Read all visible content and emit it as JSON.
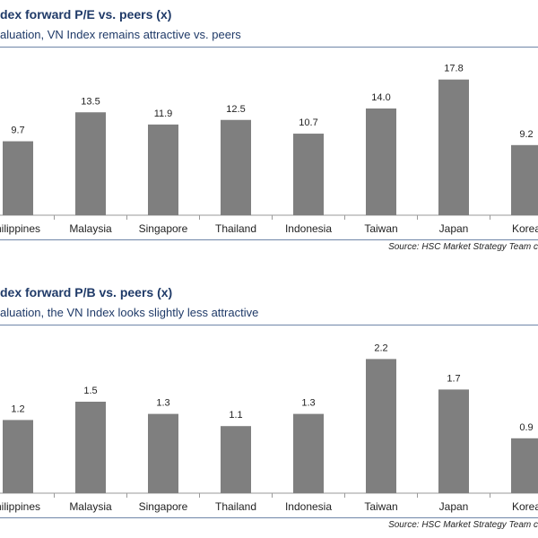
{
  "chart_data": [
    {
      "type": "bar",
      "title": "dex forward P/E vs. peers (x)",
      "subtitle": "aluation, VN Index remains attractive vs. peers",
      "categories": [
        "hilippines",
        "Malaysia",
        "Singapore",
        "Thailand",
        "Indonesia",
        "Taiwan",
        "Japan",
        "Korea"
      ],
      "values": [
        9.7,
        13.5,
        11.9,
        12.5,
        10.7,
        14.0,
        17.8,
        9.2
      ],
      "value_labels": [
        "9.7",
        "13.5",
        "11.9",
        "12.5",
        "10.7",
        "14.0",
        "17.8",
        "9.2"
      ],
      "ylim": [
        0,
        20
      ],
      "bar_color": "#7f7f7f",
      "grid": false,
      "source": "Source: HSC Market Strategy Team c"
    },
    {
      "type": "bar",
      "title": "dex forward P/B vs. peers (x)",
      "subtitle": "aluation, the VN Index looks slightly less attractive",
      "categories": [
        "hilippines",
        "Malaysia",
        "Singapore",
        "Thailand",
        "Indonesia",
        "Taiwan",
        "Japan",
        "Korea"
      ],
      "values": [
        1.2,
        1.5,
        1.3,
        1.1,
        1.3,
        2.2,
        1.7,
        0.9
      ],
      "value_labels": [
        "1.2",
        "1.5",
        "1.3",
        "1.1",
        "1.3",
        "2.2",
        "1.7",
        "0.9"
      ],
      "ylim": [
        0,
        2.5
      ],
      "bar_color": "#7f7f7f",
      "grid": false,
      "source": "Source: HSC Market Strategy Team c"
    }
  ]
}
